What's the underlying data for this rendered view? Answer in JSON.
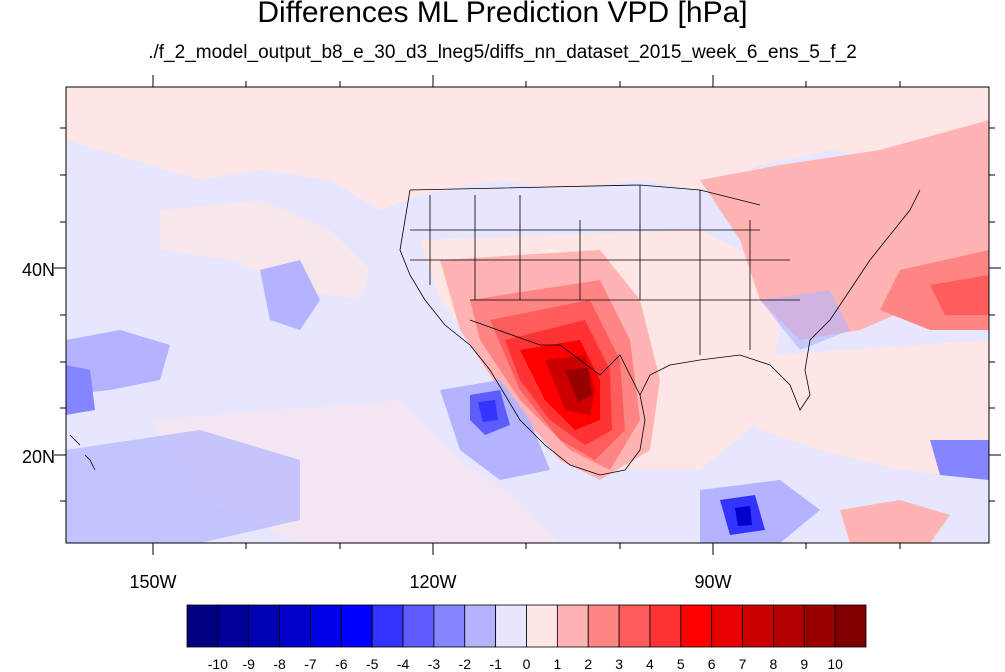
{
  "title": "Differences ML Prediction VPD [hPa]",
  "subtitle": "./f_2_model_output_b8_e_30_d3_lneg5/diffs_nn_dataset_2015_week_6_ens_5_f_2",
  "axes": {
    "lat_labels": [
      "40N",
      "20N"
    ],
    "lon_labels": [
      "150W",
      "120W",
      "90W"
    ]
  },
  "colorbar": {
    "labels": [
      "-10",
      "-9",
      "-8",
      "-7",
      "-6",
      "-5",
      "-4",
      "-3",
      "-2",
      "-1",
      "0",
      "1",
      "2",
      "3",
      "4",
      "5",
      "6",
      "7",
      "8",
      "9",
      "10"
    ],
    "colors": [
      "#000080",
      "#000099",
      "#0000b3",
      "#0000cc",
      "#0000e6",
      "#0000ff",
      "#3333ff",
      "#5c5cff",
      "#8585ff",
      "#b3b3ff",
      "#e6e6ff",
      "#ffe6e6",
      "#ffb3b3",
      "#ff8585",
      "#ff5c5c",
      "#ff3333",
      "#ff0000",
      "#e60000",
      "#cc0000",
      "#b30000",
      "#990000",
      "#800000"
    ]
  }
}
